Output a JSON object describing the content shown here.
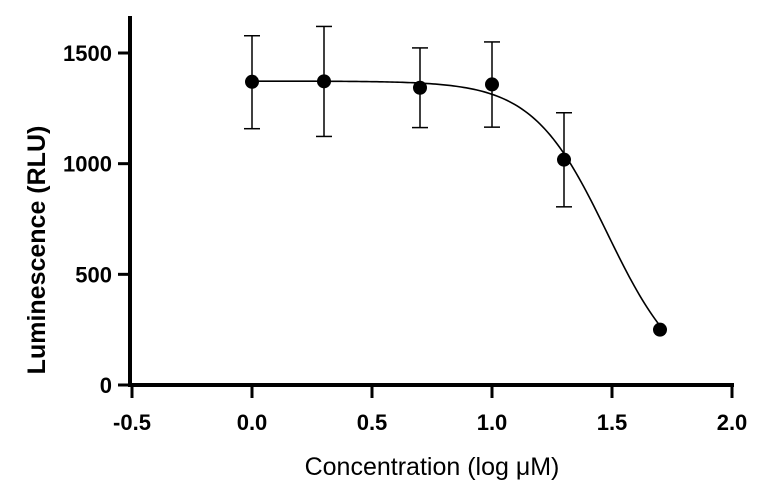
{
  "chart_data": {
    "type": "scatter",
    "title": "",
    "xlabel": "Concentration (log μM)",
    "ylabel": "Luminescence  (RLU)",
    "xlim": [
      -0.5,
      2.0
    ],
    "ylim": [
      0,
      1650
    ],
    "x_ticks": [
      -0.5,
      0.0,
      0.5,
      1.0,
      1.5,
      2.0
    ],
    "x_tick_labels": [
      "-0.5",
      "0.0",
      "0.5",
      "1.0",
      "1.5",
      "2.0"
    ],
    "y_ticks": [
      0,
      500,
      1000,
      1500
    ],
    "y_tick_labels": [
      "0",
      "500",
      "1000",
      "1500"
    ],
    "grid": false,
    "legend": "none",
    "series": [
      {
        "x": [
          0.0,
          0.3,
          0.7,
          1.0,
          1.3,
          1.7
        ],
        "y": [
          1370,
          1372,
          1343,
          1358,
          1018,
          250
        ],
        "error_low": [
          1158,
          1123,
          1163,
          1165,
          805,
          250
        ],
        "error_high": [
          1578,
          1620,
          1523,
          1550,
          1230,
          250
        ]
      }
    ],
    "fit_curve": {
      "model": "four-parameter logistic",
      "top": 1373,
      "bottom": 0,
      "log_ic50": 1.48,
      "hill_slope": -2.8,
      "x_range": [
        0.0,
        1.7
      ]
    },
    "colors": {
      "marker": "#000000",
      "line": "#000000",
      "axis": "#000000"
    }
  }
}
